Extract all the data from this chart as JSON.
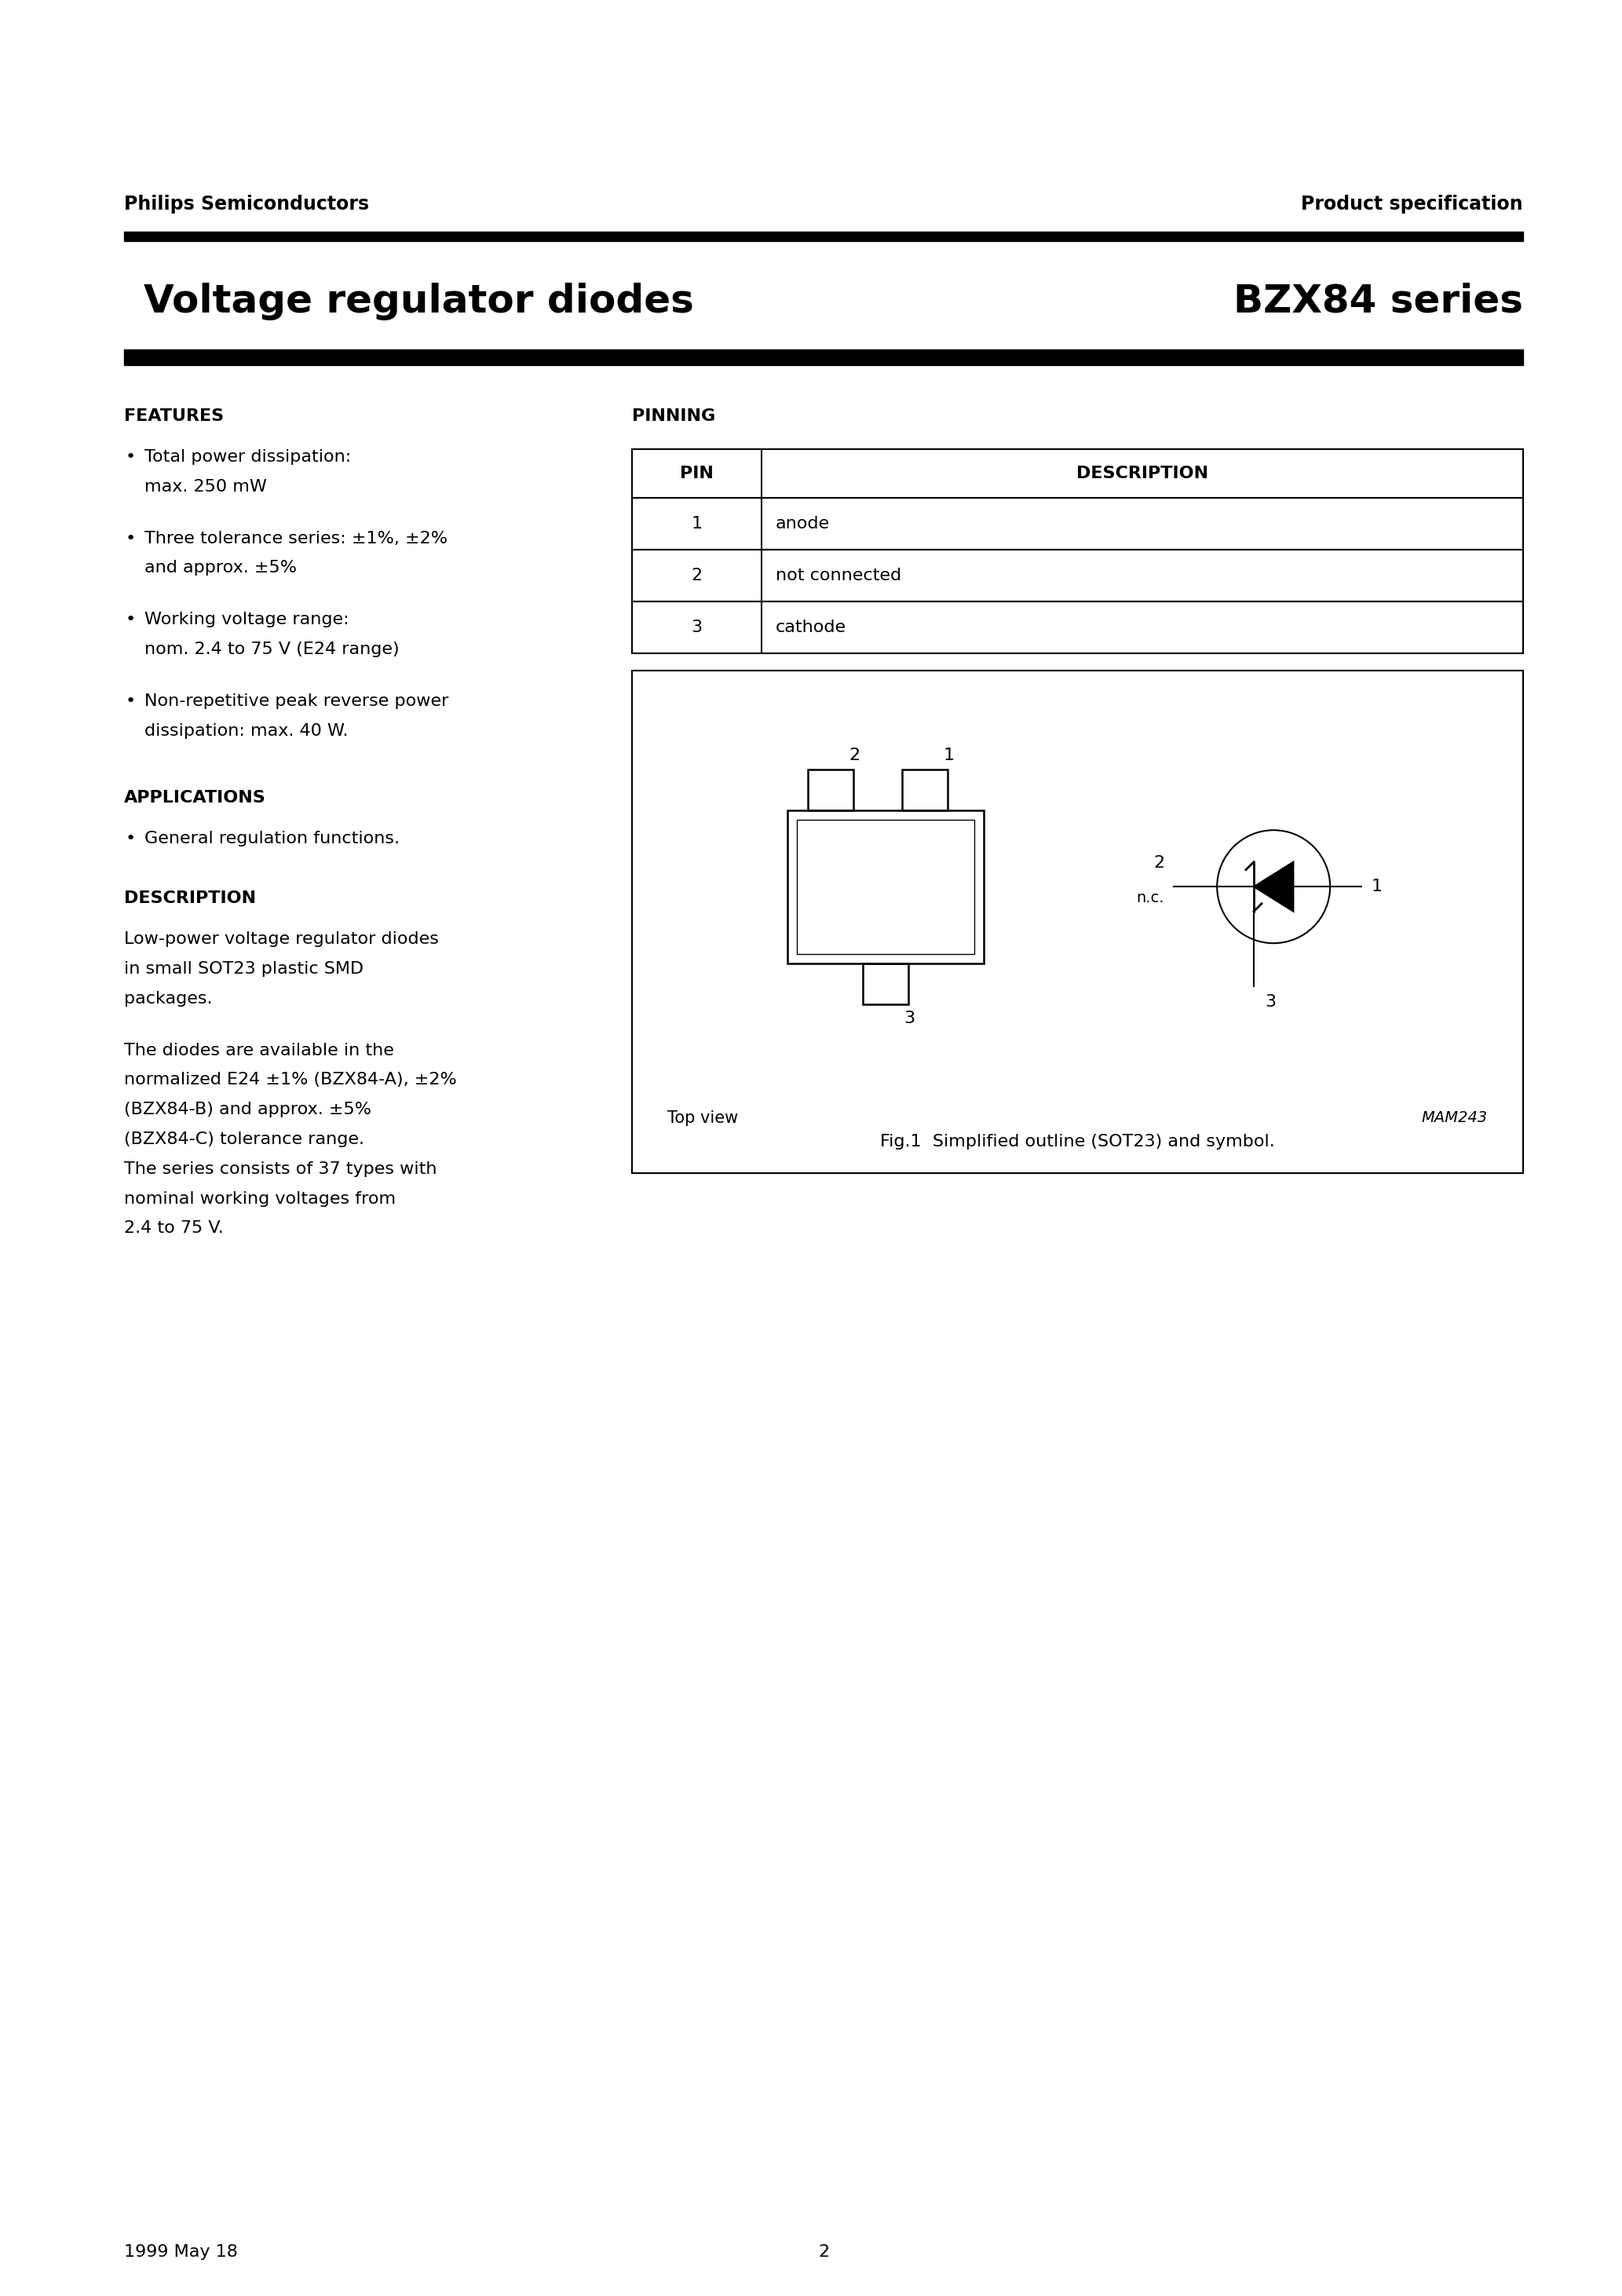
{
  "page_title_left": "Voltage regulator diodes",
  "page_title_right": "BZX84 series",
  "header_left": "Philips Semiconductors",
  "header_right": "Product specification",
  "features_title": "FEATURES",
  "features": [
    "Total power dissipation:\nmax. 250 mW",
    "Three tolerance series: ±1%, ±2%\nand approx. ±5%",
    "Working voltage range:\nnom. 2.4 to 75 V (E24 range)",
    "Non-repetitive peak reverse power\ndissipation: max. 40 W."
  ],
  "applications_title": "APPLICATIONS",
  "applications": [
    "General regulation functions."
  ],
  "description_title": "DESCRIPTION",
  "description_text1": "Low-power voltage regulator diodes\nin small SOT23 plastic SMD\npackages.",
  "description_text2": "The diodes are available in the\nnormalized E24 ±1% (BZX84-A), ±2%\n(BZX84-B) and approx. ±5%\n(BZX84-C) tolerance range.\nThe series consists of 37 types with\nnominal working voltages from\n2.4 to 75 V.",
  "pinning_title": "PINNING",
  "pin_header": [
    "PIN",
    "DESCRIPTION"
  ],
  "pin_data": [
    [
      "1",
      "anode"
    ],
    [
      "2",
      "not connected"
    ],
    [
      "3",
      "cathode"
    ]
  ],
  "fig_caption": "Fig.1  Simplified outline (SOT23) and symbol.",
  "fig_ref": "MAM243",
  "footer_left": "1999 May 18",
  "footer_center": "2",
  "bg_color": "#ffffff",
  "text_color": "#000000",
  "bar_color": "#000000"
}
